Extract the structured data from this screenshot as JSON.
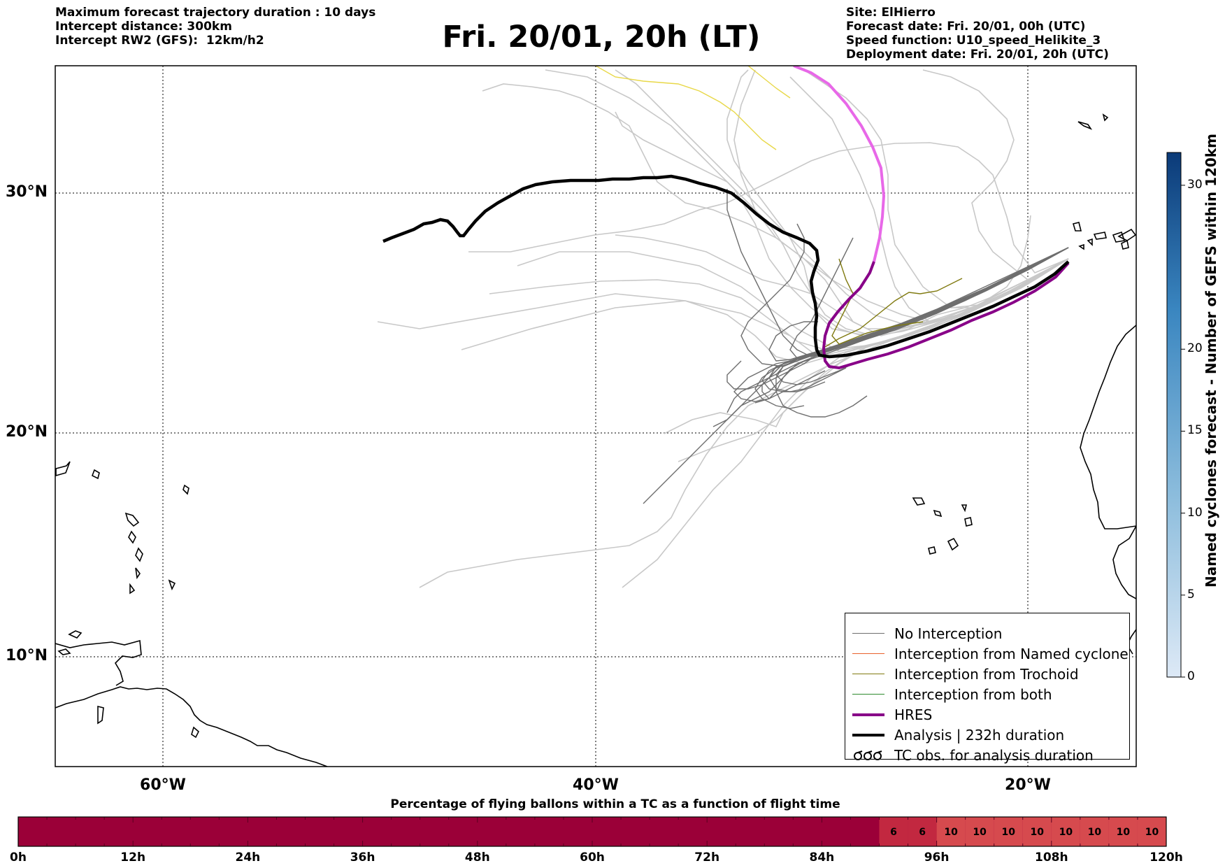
{
  "header": {
    "left": [
      "Maximum forecast trajectory duration : 10 days",
      "Intercept distance: 300km",
      "Intercept RW2 (GFS):  12km/h2"
    ],
    "title": "Fri. 20/01, 20h (LT)",
    "right": [
      "Site: ElHierro",
      "Forecast date: Fri. 20/01, 00h (UTC)",
      "Speed function: U10_speed_Helikite_3",
      "Deployment date: Fri. 20/01, 20h (UTC)"
    ]
  },
  "map": {
    "lon_range": [
      -69,
      9
    ],
    "lat_range": [
      5,
      34.3
    ],
    "lat_labels": [
      "30°N",
      "20°N",
      "10°N"
    ],
    "lon_labels": [
      "60°W",
      "40°W",
      "20°W"
    ]
  },
  "legend": {
    "items": [
      {
        "label": "No Interception",
        "color": "#6e6e6e",
        "style": "thin"
      },
      {
        "label": "Interception from Named cyclone",
        "color": "#e8622c",
        "style": "thin"
      },
      {
        "label": "Interception from Trochoid",
        "color": "#807a10",
        "style": "thin"
      },
      {
        "label": "Interception from both",
        "color": "#2e8b2e",
        "style": "thin"
      },
      {
        "label": "HRES",
        "color": "#880088",
        "style": "thick"
      },
      {
        "label": "Analysis | 232h duration",
        "color": "#000000",
        "style": "thick"
      },
      {
        "label": "TC obs. for analysis duration",
        "color": "#000000",
        "style": "symbol"
      }
    ]
  },
  "colorbar": {
    "label": "Named cyclones forecast - Number of GEFS within 120km",
    "ticks": [
      "0",
      "5",
      "10",
      "15",
      "20",
      "30"
    ],
    "min": 0,
    "max": 32
  },
  "time_bar": {
    "title": "Percentage of flying ballons within a TC as a function of flight time",
    "labels": [
      "0h",
      "12h",
      "24h",
      "36h",
      "48h",
      "60h",
      "72h",
      "84h",
      "96h",
      "108h",
      "120h"
    ],
    "dark_color": "#9b0038",
    "mid_color": "#c22840",
    "light_color": "#d64a4e",
    "values": [
      {
        "start_h": 90,
        "end_h": 93,
        "value": "6"
      },
      {
        "start_h": 93,
        "end_h": 96,
        "value": "6"
      },
      {
        "start_h": 96,
        "end_h": 99,
        "value": "10"
      },
      {
        "start_h": 99,
        "end_h": 102,
        "value": "10"
      },
      {
        "start_h": 102,
        "end_h": 105,
        "value": "10"
      },
      {
        "start_h": 105,
        "end_h": 108,
        "value": "10"
      },
      {
        "start_h": 108,
        "end_h": 111,
        "value": "10"
      },
      {
        "start_h": 111,
        "end_h": 114,
        "value": "10"
      },
      {
        "start_h": 114,
        "end_h": 117,
        "value": "10"
      },
      {
        "start_h": 117,
        "end_h": 120,
        "value": "10"
      }
    ]
  }
}
